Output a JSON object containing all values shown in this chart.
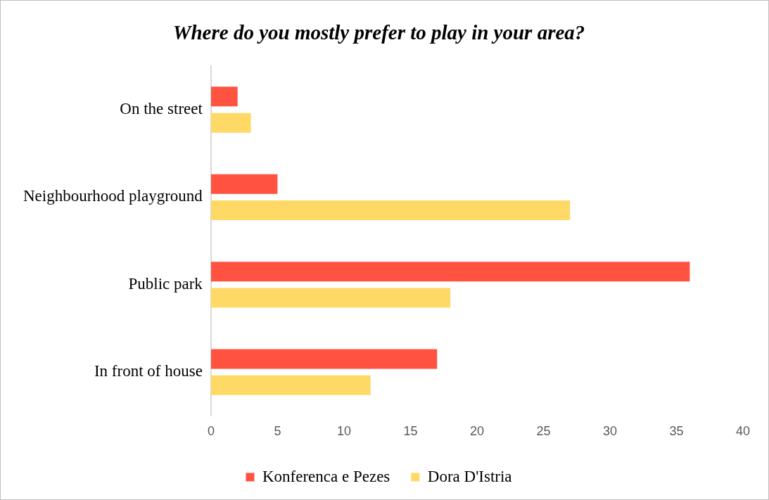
{
  "chart_data": {
    "type": "bar",
    "orientation": "horizontal",
    "title": "Where do you mostly prefer to play in your area?",
    "categories": [
      "On the street",
      "Neighbourhood playground",
      "Public park",
      "In front of house"
    ],
    "series": [
      {
        "name": "Konferenca e Pezes",
        "color": "#ff5240",
        "values": [
          2,
          5,
          36,
          17
        ]
      },
      {
        "name": "Dora D'Istria",
        "color": "#ffd966",
        "values": [
          3,
          27,
          18,
          12
        ]
      }
    ],
    "xlim": [
      0,
      40
    ],
    "xticks": [
      0,
      5,
      10,
      15,
      20,
      25,
      30,
      35,
      40
    ],
    "grid": false,
    "legend": "bottom"
  }
}
